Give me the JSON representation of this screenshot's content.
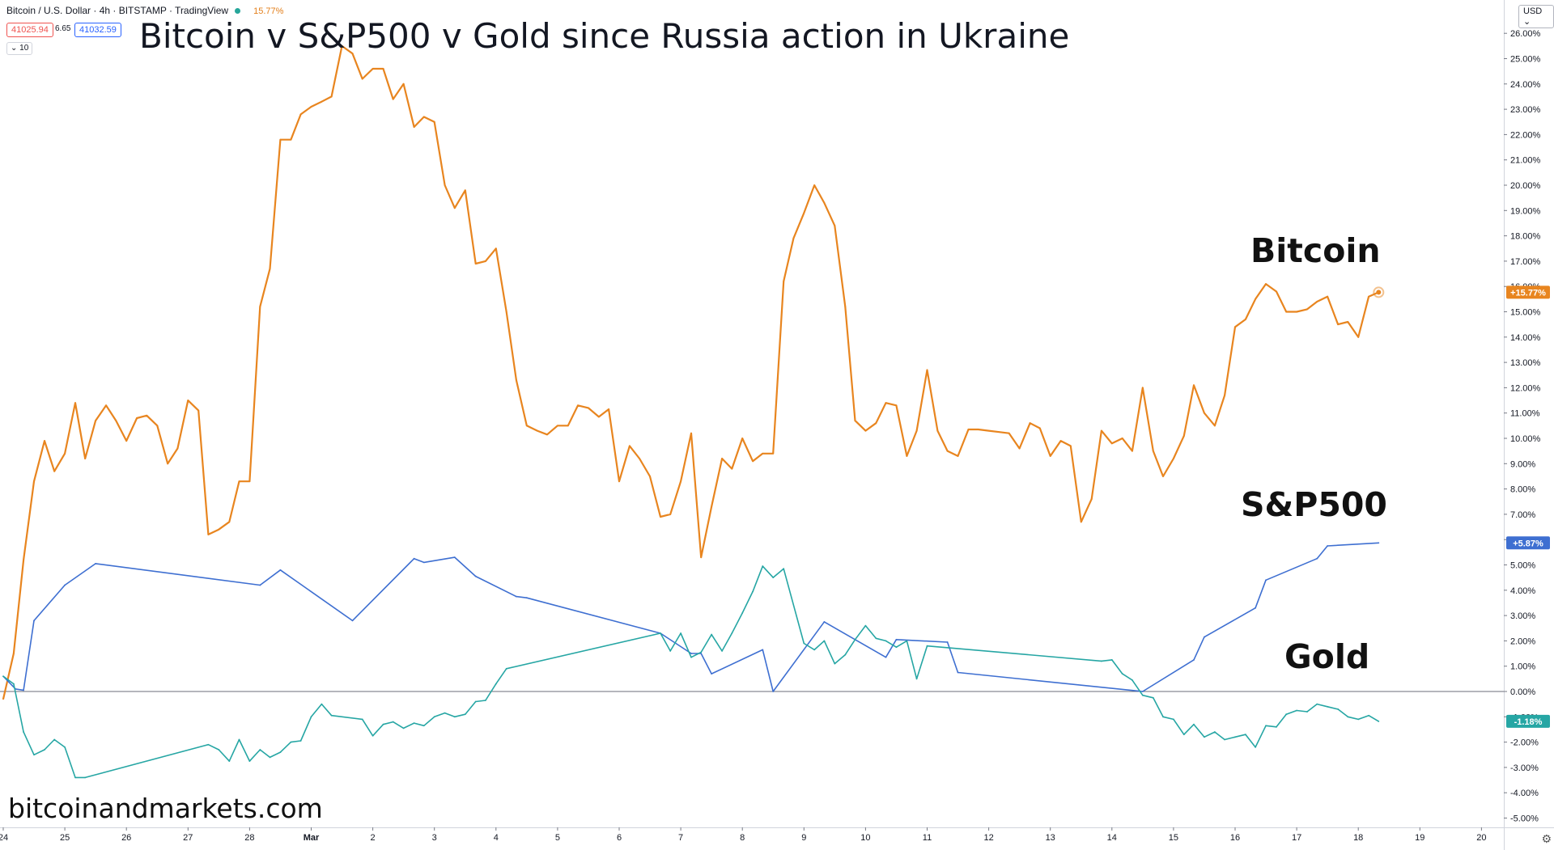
{
  "header": {
    "symbol_line": "Bitcoin / U.S. Dollar · 4h · BITSTAMP · TradingView",
    "change_pct": "15.77%",
    "bid": "41025.94",
    "spread": "6.65",
    "ask": "41032.59",
    "indicator_toggle": "10",
    "currency": "USD"
  },
  "title": "Bitcoin v S&P500 v Gold since Russia action in Ukraine",
  "watermark": "bitcoinandmarkets.com",
  "labels": {
    "bitcoin": "Bitcoin",
    "sp500": "S&P500",
    "gold": "Gold"
  },
  "colors": {
    "bitcoin": "#e8851f",
    "sp500": "#3e6fd1",
    "gold": "#26a6a4",
    "zero_line": "#6b6e78"
  },
  "icons": {
    "status": "green-dot-icon",
    "settings": "gear-icon"
  },
  "chart_data": {
    "type": "line",
    "title": "Bitcoin v S&P500 v Gold since Russia action in Ukraine",
    "xlabel": "",
    "ylabel": "",
    "ylim": [
      -5.0,
      26.5
    ],
    "x_ticks": [
      {
        "label": "24",
        "x": 0
      },
      {
        "label": "25",
        "x": 1
      },
      {
        "label": "26",
        "x": 2
      },
      {
        "label": "27",
        "x": 3
      },
      {
        "label": "28",
        "x": 4
      },
      {
        "label": "Mar",
        "x": 5
      },
      {
        "label": "2",
        "x": 6
      },
      {
        "label": "3",
        "x": 7
      },
      {
        "label": "4",
        "x": 8
      },
      {
        "label": "5",
        "x": 9
      },
      {
        "label": "6",
        "x": 10
      },
      {
        "label": "7",
        "x": 11
      },
      {
        "label": "8",
        "x": 12
      },
      {
        "label": "9",
        "x": 13
      },
      {
        "label": "10",
        "x": 14
      },
      {
        "label": "11",
        "x": 15
      },
      {
        "label": "12",
        "x": 16
      },
      {
        "label": "13",
        "x": 17
      },
      {
        "label": "14",
        "x": 18
      },
      {
        "label": "15",
        "x": 19
      },
      {
        "label": "16",
        "x": 20
      },
      {
        "label": "17",
        "x": 21
      },
      {
        "label": "18",
        "x": 22
      },
      {
        "label": "19",
        "x": 23
      },
      {
        "label": "20",
        "x": 24
      }
    ],
    "y_ticks": [
      "26.00%",
      "25.00%",
      "24.00%",
      "23.00%",
      "22.00%",
      "21.00%",
      "20.00%",
      "19.00%",
      "18.00%",
      "17.00%",
      "16.00%",
      "15.00%",
      "14.00%",
      "13.00%",
      "12.00%",
      "11.00%",
      "10.00%",
      "9.00%",
      "8.00%",
      "7.00%",
      "6.00%",
      "5.00%",
      "4.00%",
      "3.00%",
      "2.00%",
      "1.00%",
      "0.00%",
      "-1.00%",
      "-2.00%",
      "-3.00%",
      "-4.00%",
      "-5.00%"
    ],
    "series": [
      {
        "name": "Bitcoin",
        "last_label": "+15.77%",
        "points": [
          [
            0,
            -0.3
          ],
          [
            0.17,
            1.5
          ],
          [
            0.33,
            5.2
          ],
          [
            0.5,
            8.3
          ],
          [
            0.67,
            9.9
          ],
          [
            0.83,
            8.7
          ],
          [
            1,
            9.4
          ],
          [
            1.17,
            11.4
          ],
          [
            1.33,
            9.2
          ],
          [
            1.5,
            10.7
          ],
          [
            1.67,
            11.3
          ],
          [
            1.83,
            10.7
          ],
          [
            2,
            9.9
          ],
          [
            2.17,
            10.8
          ],
          [
            2.33,
            10.9
          ],
          [
            2.5,
            10.5
          ],
          [
            2.67,
            9.0
          ],
          [
            2.83,
            9.6
          ],
          [
            3,
            11.5
          ],
          [
            3.17,
            11.1
          ],
          [
            3.33,
            6.2
          ],
          [
            3.5,
            6.4
          ],
          [
            3.67,
            6.7
          ],
          [
            3.83,
            8.3
          ],
          [
            4,
            8.3
          ],
          [
            4.17,
            15.2
          ],
          [
            4.33,
            16.7
          ],
          [
            4.5,
            21.8
          ],
          [
            4.67,
            21.8
          ],
          [
            4.83,
            22.8
          ],
          [
            5,
            23.1
          ],
          [
            5.17,
            23.3
          ],
          [
            5.33,
            23.5
          ],
          [
            5.5,
            25.5
          ],
          [
            5.67,
            25.2
          ],
          [
            5.83,
            24.2
          ],
          [
            6,
            24.6
          ],
          [
            6.17,
            24.6
          ],
          [
            6.33,
            23.4
          ],
          [
            6.5,
            24.0
          ],
          [
            6.67,
            22.3
          ],
          [
            6.83,
            22.7
          ],
          [
            7,
            22.5
          ],
          [
            7.17,
            20.0
          ],
          [
            7.33,
            19.1
          ],
          [
            7.5,
            19.8
          ],
          [
            7.67,
            16.9
          ],
          [
            7.83,
            17.0
          ],
          [
            8,
            17.5
          ],
          [
            8.17,
            15.0
          ],
          [
            8.33,
            12.3
          ],
          [
            8.5,
            10.5
          ],
          [
            8.67,
            10.3
          ],
          [
            8.83,
            10.15
          ],
          [
            9,
            10.5
          ],
          [
            9.17,
            10.5
          ],
          [
            9.33,
            11.3
          ],
          [
            9.5,
            11.2
          ],
          [
            9.67,
            10.85
          ],
          [
            9.83,
            11.15
          ],
          [
            10,
            8.3
          ],
          [
            10.17,
            9.7
          ],
          [
            10.33,
            9.2
          ],
          [
            10.5,
            8.5
          ],
          [
            10.67,
            6.9
          ],
          [
            10.83,
            7.0
          ],
          [
            11,
            8.3
          ],
          [
            11.17,
            10.2
          ],
          [
            11.33,
            5.3
          ],
          [
            11.5,
            7.3
          ],
          [
            11.67,
            9.2
          ],
          [
            11.83,
            8.8
          ],
          [
            12,
            10.0
          ],
          [
            12.17,
            9.1
          ],
          [
            12.33,
            9.4
          ],
          [
            12.5,
            9.4
          ],
          [
            12.67,
            16.2
          ],
          [
            12.83,
            17.9
          ],
          [
            13,
            18.9
          ],
          [
            13.17,
            20.0
          ],
          [
            13.33,
            19.3
          ],
          [
            13.5,
            18.4
          ],
          [
            13.67,
            15.2
          ],
          [
            13.83,
            10.7
          ],
          [
            14,
            10.3
          ],
          [
            14.17,
            10.6
          ],
          [
            14.33,
            11.4
          ],
          [
            14.5,
            11.3
          ],
          [
            14.67,
            9.3
          ],
          [
            14.83,
            10.3
          ],
          [
            15,
            12.7
          ],
          [
            15.17,
            10.3
          ],
          [
            15.33,
            9.5
          ],
          [
            15.5,
            9.3
          ],
          [
            15.67,
            10.35
          ],
          [
            15.83,
            10.35
          ],
          [
            16,
            10.3
          ],
          [
            16.17,
            10.25
          ],
          [
            16.33,
            10.2
          ],
          [
            16.5,
            9.6
          ],
          [
            16.67,
            10.6
          ],
          [
            16.83,
            10.4
          ],
          [
            17,
            9.3
          ],
          [
            17.17,
            9.9
          ],
          [
            17.33,
            9.7
          ],
          [
            17.5,
            6.7
          ],
          [
            17.67,
            7.6
          ],
          [
            17.83,
            10.3
          ],
          [
            18,
            9.8
          ],
          [
            18.17,
            10.0
          ],
          [
            18.33,
            9.5
          ],
          [
            18.5,
            12.0
          ],
          [
            18.67,
            9.5
          ],
          [
            18.83,
            8.5
          ],
          [
            19,
            9.2
          ],
          [
            19.17,
            10.1
          ],
          [
            19.33,
            12.1
          ],
          [
            19.5,
            11.0
          ],
          [
            19.67,
            10.5
          ],
          [
            19.83,
            11.7
          ],
          [
            20,
            14.4
          ],
          [
            20.17,
            14.7
          ],
          [
            20.33,
            15.5
          ],
          [
            20.5,
            16.1
          ],
          [
            20.67,
            15.8
          ],
          [
            20.83,
            15.0
          ],
          [
            21,
            15.0
          ],
          [
            21.17,
            15.1
          ],
          [
            21.33,
            15.4
          ],
          [
            21.5,
            15.6
          ],
          [
            21.67,
            14.5
          ],
          [
            21.83,
            14.6
          ],
          [
            22,
            14.0
          ],
          [
            22.17,
            15.6
          ],
          [
            22.33,
            15.77
          ]
        ]
      },
      {
        "name": "S&P500",
        "last_label": "+5.87%",
        "points": [
          [
            0,
            0.6
          ],
          [
            0.2,
            0.1
          ],
          [
            0.33,
            0.05
          ],
          [
            0.5,
            2.8
          ],
          [
            1,
            4.2
          ],
          [
            1.5,
            5.05
          ],
          [
            4.17,
            4.2
          ],
          [
            4.5,
            4.8
          ],
          [
            5.67,
            2.8
          ],
          [
            6.67,
            5.25
          ],
          [
            6.83,
            5.1
          ],
          [
            7.33,
            5.3
          ],
          [
            7.67,
            4.55
          ],
          [
            8.33,
            3.75
          ],
          [
            8.5,
            3.7
          ],
          [
            10.67,
            2.3
          ],
          [
            11.17,
            1.5
          ],
          [
            11.33,
            1.5
          ],
          [
            11.5,
            0.7
          ],
          [
            12.33,
            1.65
          ],
          [
            12.5,
            0.0
          ],
          [
            13.33,
            2.75
          ],
          [
            14.33,
            1.35
          ],
          [
            14.5,
            2.05
          ],
          [
            15.33,
            1.95
          ],
          [
            15.5,
            0.75
          ],
          [
            18.5,
            0.0
          ],
          [
            19.33,
            1.25
          ],
          [
            19.5,
            2.15
          ],
          [
            20.33,
            3.3
          ],
          [
            20.5,
            4.4
          ],
          [
            21.33,
            5.25
          ],
          [
            21.5,
            5.75
          ],
          [
            22.33,
            5.87
          ]
        ]
      },
      {
        "name": "Gold",
        "last_label": "-1.18%",
        "points": [
          [
            0,
            0.6
          ],
          [
            0.17,
            0.3
          ],
          [
            0.33,
            -1.6
          ],
          [
            0.5,
            -2.5
          ],
          [
            0.67,
            -2.3
          ],
          [
            0.83,
            -1.9
          ],
          [
            1,
            -2.2
          ],
          [
            1.17,
            -3.4
          ],
          [
            1.33,
            -3.4
          ],
          [
            3.33,
            -2.1
          ],
          [
            3.5,
            -2.3
          ],
          [
            3.67,
            -2.75
          ],
          [
            3.83,
            -1.9
          ],
          [
            4,
            -2.75
          ],
          [
            4.17,
            -2.3
          ],
          [
            4.33,
            -2.6
          ],
          [
            4.5,
            -2.4
          ],
          [
            4.67,
            -2.0
          ],
          [
            4.83,
            -1.95
          ],
          [
            5,
            -1.0
          ],
          [
            5.17,
            -0.5
          ],
          [
            5.33,
            -0.95
          ],
          [
            5.83,
            -1.1
          ],
          [
            6,
            -1.75
          ],
          [
            6.17,
            -1.3
          ],
          [
            6.33,
            -1.2
          ],
          [
            6.5,
            -1.45
          ],
          [
            6.67,
            -1.25
          ],
          [
            6.83,
            -1.35
          ],
          [
            7,
            -1.0
          ],
          [
            7.17,
            -0.85
          ],
          [
            7.33,
            -1.0
          ],
          [
            7.5,
            -0.9
          ],
          [
            7.67,
            -0.4
          ],
          [
            7.83,
            -0.35
          ],
          [
            8,
            0.3
          ],
          [
            8.17,
            0.9
          ],
          [
            10.67,
            2.3
          ],
          [
            10.83,
            1.6
          ],
          [
            11,
            2.3
          ],
          [
            11.17,
            1.35
          ],
          [
            11.33,
            1.55
          ],
          [
            11.5,
            2.25
          ],
          [
            11.67,
            1.6
          ],
          [
            11.83,
            2.3
          ],
          [
            12,
            3.1
          ],
          [
            12.17,
            3.95
          ],
          [
            12.33,
            4.95
          ],
          [
            12.5,
            4.5
          ],
          [
            12.67,
            4.85
          ],
          [
            13,
            1.9
          ],
          [
            13.17,
            1.65
          ],
          [
            13.33,
            2.0
          ],
          [
            13.5,
            1.1
          ],
          [
            13.67,
            1.45
          ],
          [
            13.83,
            2.05
          ],
          [
            14,
            2.6
          ],
          [
            14.17,
            2.1
          ],
          [
            14.33,
            2.0
          ],
          [
            14.5,
            1.75
          ],
          [
            14.67,
            2.0
          ],
          [
            14.83,
            0.5
          ],
          [
            15,
            1.8
          ],
          [
            17.83,
            1.2
          ],
          [
            18,
            1.25
          ],
          [
            18.17,
            0.7
          ],
          [
            18.33,
            0.45
          ],
          [
            18.5,
            -0.15
          ],
          [
            18.67,
            -0.25
          ],
          [
            18.83,
            -1.0
          ],
          [
            19,
            -1.1
          ],
          [
            19.17,
            -1.7
          ],
          [
            19.33,
            -1.3
          ],
          [
            19.5,
            -1.8
          ],
          [
            19.67,
            -1.6
          ],
          [
            19.83,
            -1.9
          ],
          [
            20,
            -1.8
          ],
          [
            20.17,
            -1.7
          ],
          [
            20.33,
            -2.2
          ],
          [
            20.5,
            -1.35
          ],
          [
            20.67,
            -1.4
          ],
          [
            20.83,
            -0.9
          ],
          [
            21,
            -0.75
          ],
          [
            21.17,
            -0.8
          ],
          [
            21.33,
            -0.5
          ],
          [
            21.5,
            -0.6
          ],
          [
            21.67,
            -0.7
          ],
          [
            21.83,
            -1.0
          ],
          [
            22,
            -1.1
          ],
          [
            22.17,
            -0.95
          ],
          [
            22.33,
            -1.18
          ]
        ]
      }
    ],
    "grid": false,
    "legend": "none"
  }
}
